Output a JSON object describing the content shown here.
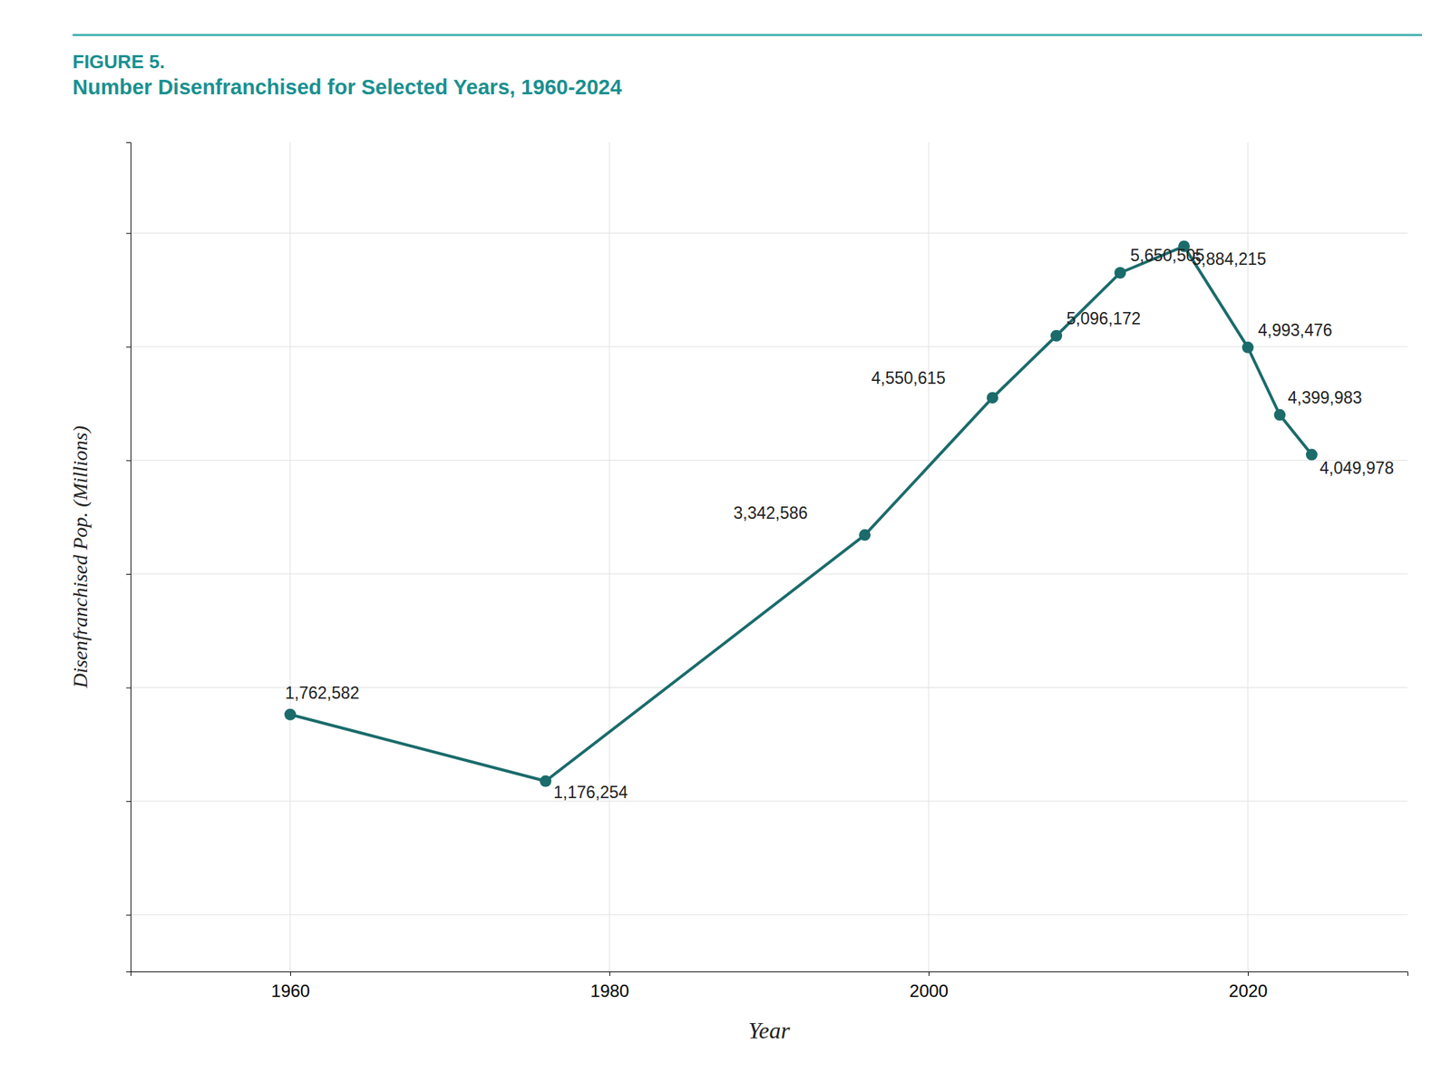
{
  "chart_data": {
    "type": "line",
    "title": "FIGURE 5.",
    "subtitle": "Number Disenfranchised for Selected Years, 1960-2024",
    "x": [
      1960,
      1976,
      1996,
      2004,
      2008,
      2012,
      2016,
      2020,
      2022,
      2024
    ],
    "values": [
      1762582,
      1176254,
      3342586,
      4550615,
      5096172,
      5650505,
      5884215,
      4993476,
      4399983,
      4049978
    ],
    "value_labels": [
      "1,762,582",
      "1,176,254",
      "3,342,586",
      "4,550,615",
      "5,096,172",
      "5,650,505",
      "5,884,215",
      "4,993,476",
      "4,399,983",
      "4,049,978"
    ],
    "data_labels": true,
    "color": "#1b6b6b",
    "marker": "circle",
    "line_style": "solid",
    "xlabel": "Year",
    "ylabel": "Disenfranchised Pop. (Millions)",
    "xlim": [
      1950,
      2030
    ],
    "ylim": [
      -500000,
      6800000
    ],
    "xticks": [
      1960,
      1980,
      2000,
      2020
    ],
    "yticks": [
      0,
      1000000,
      2000000,
      3000000,
      4000000,
      5000000,
      6000000
    ],
    "tick_labels": "x",
    "grid": true
  }
}
